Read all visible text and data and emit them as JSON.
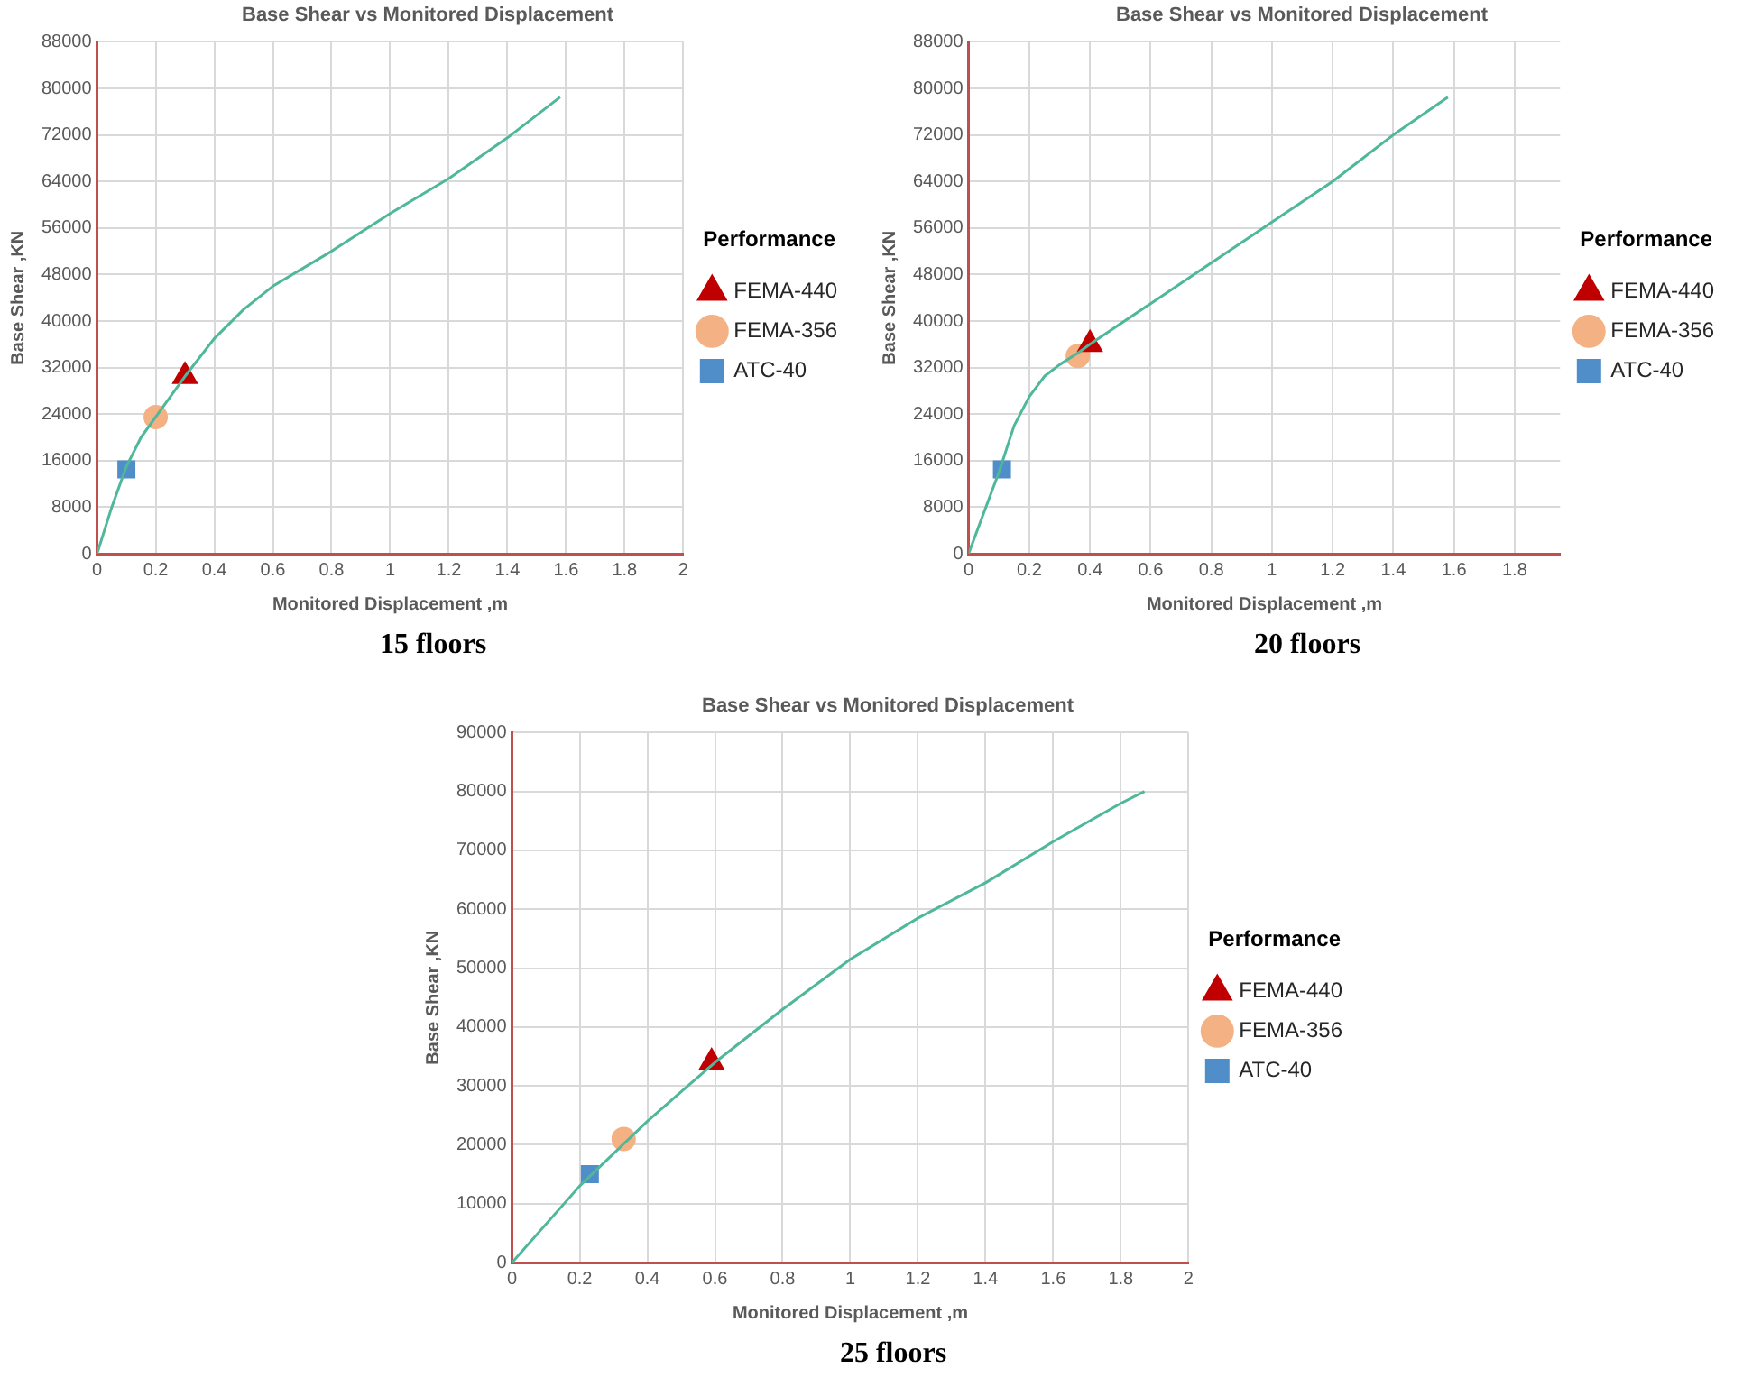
{
  "chart_data": [
    {
      "type": "line",
      "title": "Base Shear vs Monitored Displacement",
      "xlabel": "Monitored Displacement ,m",
      "ylabel": "Base Shear ,KN",
      "legend_title": "Performance",
      "legend": "right",
      "grid": true,
      "xlim": [
        0,
        2
      ],
      "xticks": [
        0,
        0.2,
        0.4,
        0.6,
        0.8,
        1,
        1.2,
        1.4,
        1.6,
        1.8,
        2
      ],
      "ylim": [
        0,
        88000
      ],
      "yticks": [
        0,
        8000,
        16000,
        24000,
        32000,
        40000,
        48000,
        56000,
        64000,
        72000,
        80000,
        88000
      ],
      "annotations": [
        "15 floors"
      ],
      "series": [
        {
          "color": "#4fb89a",
          "marker": "none",
          "x": [
            0,
            0.05,
            0.1,
            0.15,
            0.2,
            0.3,
            0.4,
            0.5,
            0.6,
            0.8,
            1.0,
            1.2,
            1.4,
            1.58
          ],
          "values": [
            0,
            8000,
            15000,
            20000,
            23500,
            30500,
            37000,
            42000,
            46000,
            52000,
            58500,
            64500,
            71500,
            78500
          ]
        },
        {
          "name": "FEMA-440",
          "type": "scatter",
          "marker": "triangle",
          "color": "#c00000",
          "x": [
            0.3
          ],
          "values": [
            30500
          ]
        },
        {
          "name": "FEMA-356",
          "type": "scatter",
          "marker": "circle",
          "color": "#f4b183",
          "x": [
            0.2
          ],
          "values": [
            23500
          ]
        },
        {
          "name": "ATC-40",
          "type": "scatter",
          "marker": "square",
          "color": "#4f8ec9",
          "x": [
            0.1
          ],
          "values": [
            14500
          ]
        }
      ]
    },
    {
      "type": "line",
      "title": "Base Shear vs Monitored Displacement",
      "xlabel": "Monitored Displacement ,m",
      "ylabel": "Base Shear ,KN",
      "legend_title": "Performance",
      "legend": "right",
      "grid": true,
      "xlim": [
        0,
        1.95
      ],
      "xticks": [
        0,
        0.2,
        0.4,
        0.6,
        0.8,
        1,
        1.2,
        1.4,
        1.6,
        1.8
      ],
      "ylim": [
        0,
        88000
      ],
      "yticks": [
        0,
        8000,
        16000,
        24000,
        32000,
        40000,
        48000,
        56000,
        64000,
        72000,
        80000,
        88000
      ],
      "annotations": [
        "20 floors"
      ],
      "series": [
        {
          "color": "#4fb89a",
          "marker": "none",
          "x": [
            0,
            0.05,
            0.1,
            0.15,
            0.2,
            0.25,
            0.3,
            0.36,
            0.4,
            0.6,
            0.8,
            1.0,
            1.2,
            1.4,
            1.58
          ],
          "values": [
            0,
            7000,
            14000,
            22000,
            27000,
            30500,
            32500,
            34500,
            36000,
            43000,
            50000,
            57000,
            64000,
            72000,
            78500
          ]
        },
        {
          "name": "FEMA-440",
          "type": "scatter",
          "marker": "triangle",
          "color": "#c00000",
          "x": [
            0.4
          ],
          "values": [
            36000
          ]
        },
        {
          "name": "FEMA-356",
          "type": "scatter",
          "marker": "circle",
          "color": "#f4b183",
          "x": [
            0.36
          ],
          "values": [
            34000
          ]
        },
        {
          "name": "ATC-40",
          "type": "scatter",
          "marker": "square",
          "color": "#4f8ec9",
          "x": [
            0.11
          ],
          "values": [
            14500
          ]
        }
      ]
    },
    {
      "type": "line",
      "title": "Base Shear vs Monitored Displacement",
      "xlabel": "Monitored Displacement ,m",
      "ylabel": "Base Shear ,KN",
      "legend_title": "Performance",
      "legend": "right",
      "grid": true,
      "xlim": [
        0,
        2
      ],
      "xticks": [
        0,
        0.2,
        0.4,
        0.6,
        0.8,
        1,
        1.2,
        1.4,
        1.6,
        1.8,
        2
      ],
      "ylim": [
        0,
        90000
      ],
      "yticks": [
        0,
        10000,
        20000,
        30000,
        40000,
        50000,
        60000,
        70000,
        80000,
        90000
      ],
      "annotations": [
        "25 floors"
      ],
      "series": [
        {
          "color": "#4fb89a",
          "marker": "none",
          "x": [
            0,
            0.2,
            0.4,
            0.6,
            0.8,
            1.0,
            1.2,
            1.4,
            1.6,
            1.8,
            1.87
          ],
          "values": [
            0,
            13000,
            24000,
            34000,
            43000,
            51500,
            58500,
            64500,
            71500,
            78000,
            80000
          ]
        },
        {
          "name": "FEMA-440",
          "type": "scatter",
          "marker": "triangle",
          "color": "#c00000",
          "x": [
            0.59
          ],
          "values": [
            34000
          ]
        },
        {
          "name": "FEMA-356",
          "type": "scatter",
          "marker": "circle",
          "color": "#f4b183",
          "x": [
            0.33
          ],
          "values": [
            21000
          ]
        },
        {
          "name": "ATC-40",
          "type": "scatter",
          "marker": "square",
          "color": "#4f8ec9",
          "x": [
            0.23
          ],
          "values": [
            15000
          ]
        }
      ]
    }
  ]
}
